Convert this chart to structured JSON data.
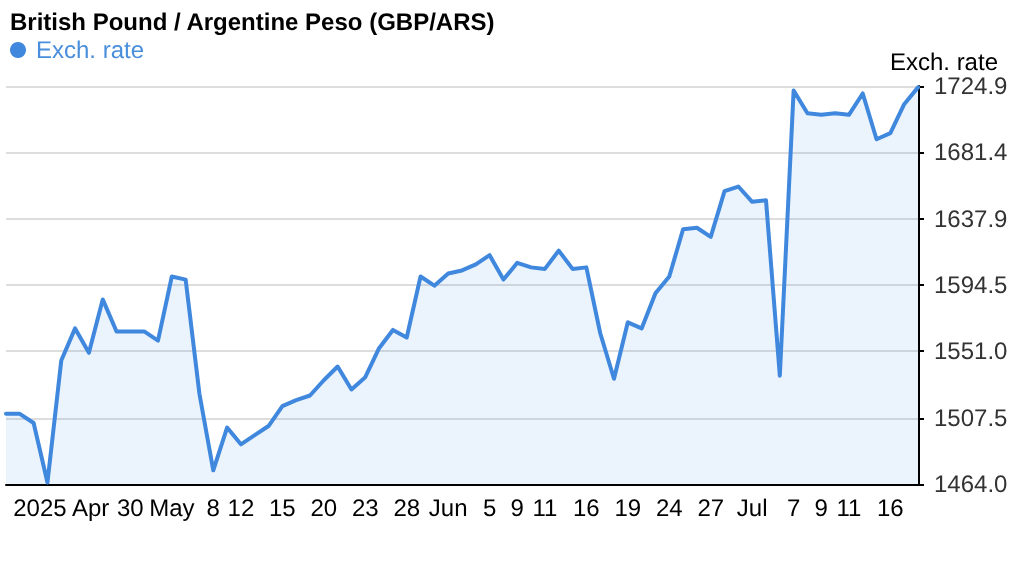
{
  "chart_data": {
    "type": "area",
    "title": "British Pound / Argentine Peso (GBP/ARS)",
    "ylabel": "Exch. rate",
    "categories": [
      null,
      null,
      null,
      null,
      "2025 Apr",
      null,
      null,
      null,
      null,
      "30",
      null,
      null,
      "May",
      null,
      null,
      "8",
      null,
      "12",
      null,
      null,
      "15",
      null,
      null,
      "20",
      null,
      null,
      "23",
      null,
      null,
      "28",
      null,
      null,
      "Jun",
      null,
      null,
      "5",
      null,
      "9",
      null,
      "11",
      null,
      null,
      "16",
      null,
      null,
      "19",
      null,
      null,
      "24",
      null,
      null,
      "27",
      null,
      null,
      "Jul",
      null,
      null,
      "7",
      null,
      "9",
      null,
      "11",
      null,
      null,
      "16",
      null,
      null
    ],
    "series": [
      {
        "name": "Exch. rate",
        "color": "#3f88de",
        "values": [
          1510,
          1510,
          1504,
          1465,
          1545,
          1566,
          1550,
          1585,
          1564,
          1564,
          1564,
          1558,
          1600,
          1598,
          1523,
          1473,
          1501,
          1490,
          1496,
          1502,
          1515,
          1519,
          1522,
          1532,
          1541,
          1526,
          1534,
          1553,
          1565,
          1560,
          1600,
          1594,
          1602,
          1604,
          1608,
          1614,
          1598,
          1609,
          1606,
          1605,
          1617,
          1605,
          1606,
          1563,
          1533,
          1570,
          1566,
          1589,
          1600,
          1631,
          1632,
          1626,
          1656,
          1659,
          1649,
          1650,
          1535,
          1722,
          1707,
          1706,
          1707,
          1706,
          1720,
          1690,
          1694,
          1713,
          1724
        ]
      }
    ],
    "ylim": [
      1464,
      1724.9
    ],
    "yticks": [
      {
        "value": 1464,
        "label": "1464.0"
      },
      {
        "value": 1507.48,
        "label": "1507.5"
      },
      {
        "value": 1550.97,
        "label": "1551.0"
      },
      {
        "value": 1594.45,
        "label": "1594.5"
      },
      {
        "value": 1637.93,
        "label": "1637.9"
      },
      {
        "value": 1681.42,
        "label": "1681.4"
      },
      {
        "value": 1724.9,
        "label": "1724.9"
      }
    ],
    "grid": "y",
    "legend": "top left",
    "marker": "none",
    "line_style": "solid"
  }
}
